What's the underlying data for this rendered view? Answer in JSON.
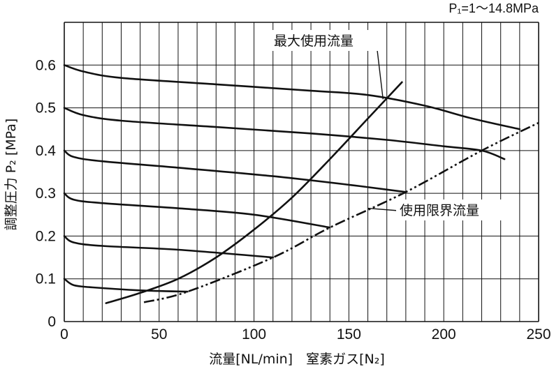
{
  "chart_data": {
    "type": "line",
    "title": "P₁=1～14.8MPa",
    "xlabel": "流量[NL/min]　窒素ガス[N₂]",
    "ylabel": "調整圧力 P₂ [MPa]",
    "xlim": [
      0,
      250
    ],
    "ylim": [
      0,
      0.7
    ],
    "xticks": [
      "0",
      "50",
      "100",
      "150",
      "200",
      "250"
    ],
    "yticks": [
      "0",
      "0.1",
      "0.2",
      "0.3",
      "0.4",
      "0.5",
      "0.6"
    ],
    "grid": true,
    "series": [
      {
        "set": 0.6,
        "points": [
          [
            0,
            0.6
          ],
          [
            10,
            0.585
          ],
          [
            30,
            0.57
          ],
          [
            80,
            0.555
          ],
          [
            130,
            0.54
          ],
          [
            160,
            0.53
          ],
          [
            190,
            0.505
          ],
          [
            215,
            0.475
          ],
          [
            240,
            0.45
          ]
        ]
      },
      {
        "set": 0.5,
        "points": [
          [
            0,
            0.5
          ],
          [
            10,
            0.483
          ],
          [
            30,
            0.47
          ],
          [
            80,
            0.455
          ],
          [
            130,
            0.44
          ],
          [
            170,
            0.425
          ],
          [
            200,
            0.41
          ],
          [
            220,
            0.4
          ],
          [
            232,
            0.38
          ]
        ]
      },
      {
        "set": 0.4,
        "points": [
          [
            0,
            0.4
          ],
          [
            5,
            0.385
          ],
          [
            20,
            0.375
          ],
          [
            60,
            0.36
          ],
          [
            110,
            0.34
          ],
          [
            150,
            0.32
          ],
          [
            180,
            0.303
          ]
        ]
      },
      {
        "set": 0.3,
        "points": [
          [
            0,
            0.3
          ],
          [
            5,
            0.285
          ],
          [
            20,
            0.277
          ],
          [
            60,
            0.265
          ],
          [
            100,
            0.25
          ],
          [
            140,
            0.22
          ]
        ]
      },
      {
        "set": 0.2,
        "points": [
          [
            0,
            0.2
          ],
          [
            5,
            0.185
          ],
          [
            20,
            0.177
          ],
          [
            60,
            0.168
          ],
          [
            110,
            0.15
          ]
        ]
      },
      {
        "set": 0.1,
        "points": [
          [
            0,
            0.1
          ],
          [
            5,
            0.085
          ],
          [
            15,
            0.08
          ],
          [
            40,
            0.073
          ],
          [
            65,
            0.07
          ]
        ]
      }
    ],
    "max_flow_curve": {
      "label": "最大使用流量",
      "points": [
        [
          22,
          0.043
        ],
        [
          40,
          0.067
        ],
        [
          60,
          0.1
        ],
        [
          80,
          0.15
        ],
        [
          100,
          0.215
        ],
        [
          120,
          0.29
        ],
        [
          140,
          0.38
        ],
        [
          160,
          0.475
        ],
        [
          178,
          0.56
        ]
      ]
    },
    "limit_flow_line": {
      "label": "使用限界流量",
      "style": "dash-dot-dot",
      "points": [
        [
          42,
          0.045
        ],
        [
          65,
          0.07
        ],
        [
          110,
          0.15
        ],
        [
          140,
          0.22
        ],
        [
          180,
          0.303
        ],
        [
          220,
          0.4
        ],
        [
          250,
          0.465
        ]
      ]
    }
  }
}
